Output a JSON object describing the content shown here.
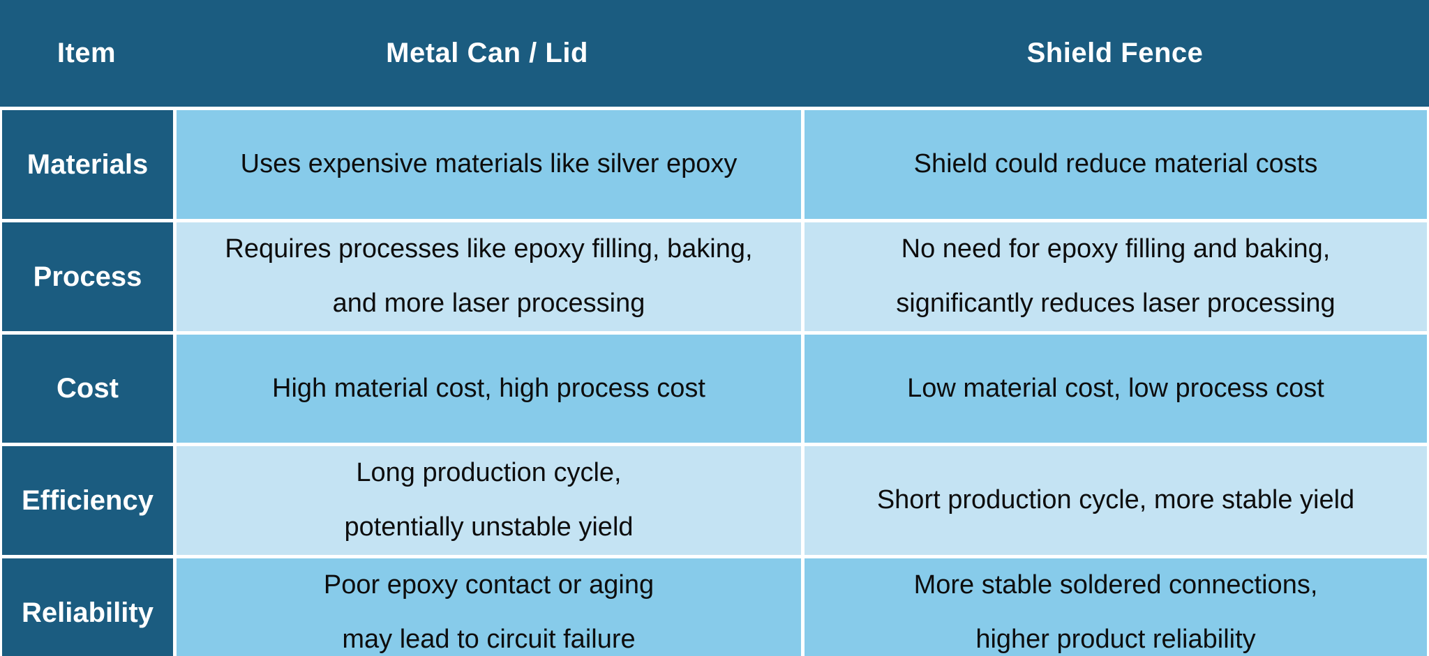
{
  "table": {
    "header": {
      "item": "Item",
      "metal": "Metal Can / Lid",
      "shield": "Shield Fence"
    },
    "rows": [
      {
        "label": "Materials",
        "metal": [
          "Uses expensive materials like silver epoxy"
        ],
        "shield": [
          "Shield could reduce material costs"
        ]
      },
      {
        "label": "Process",
        "metal": [
          "Requires processes like epoxy filling, baking,",
          "and more laser processing"
        ],
        "shield": [
          "No need for epoxy filling and baking,",
          "significantly reduces laser processing"
        ]
      },
      {
        "label": "Cost",
        "metal": [
          "High material cost, high process cost"
        ],
        "shield": [
          "Low material cost, low process cost"
        ]
      },
      {
        "label": "Efficiency",
        "metal": [
          "Long production cycle,",
          "potentially unstable yield"
        ],
        "shield": [
          "Short production cycle, more stable yield"
        ]
      },
      {
        "label": "Reliability",
        "metal": [
          "Poor epoxy contact or aging",
          "may lead to circuit failure"
        ],
        "shield": [
          "More stable soldered connections,",
          "higher product reliability"
        ]
      }
    ]
  },
  "colors": {
    "header_bg": "#1B5C80",
    "row_medium": "#87CBEA",
    "row_light": "#C4E3F3",
    "grid_line": "#FFFFFF",
    "header_text": "#FFFFFF",
    "body_text": "#0D0D0D"
  }
}
